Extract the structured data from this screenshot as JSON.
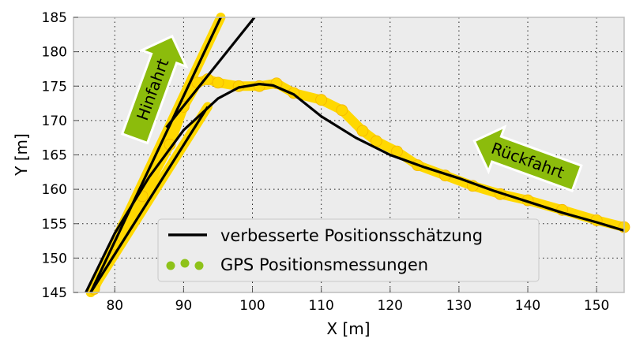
{
  "chart_data": {
    "type": "scatter",
    "title": "",
    "xlabel": "X [m]",
    "ylabel": "Y [m]",
    "xlim": [
      74,
      154
    ],
    "ylim": [
      145,
      185
    ],
    "xticks": [
      80,
      90,
      100,
      110,
      120,
      130,
      140,
      150
    ],
    "yticks": [
      145,
      150,
      155,
      160,
      165,
      170,
      175,
      180,
      185
    ],
    "grid": true,
    "legend_placement": "lower-center",
    "colors": {
      "plot_background": "#ececec",
      "line": "#000000",
      "gps_marker": "#ffd700",
      "legend_marker": "#8ec21a",
      "arrow_fill": "#8cbc0c",
      "arrow_stroke": "#ffffff"
    },
    "series": [
      {
        "name": "verbesserte Positionsschätzung",
        "kind": "line",
        "x": [
          75.8,
          80,
          85,
          90,
          95,
          98,
          101,
          103,
          106,
          110,
          115,
          120,
          125,
          130,
          135,
          140,
          145,
          150,
          154
        ],
        "y": [
          145,
          153.6,
          161.8,
          168.6,
          173.2,
          174.8,
          175.3,
          175.1,
          173.8,
          170.6,
          167.5,
          165,
          163.2,
          161.6,
          159.8,
          158.2,
          156.6,
          155.2,
          154
        ],
        "segments": [
          {
            "x": [
              76.5,
              95.4
            ],
            "y": [
              145,
              185
            ]
          },
          {
            "x": [
              76.5,
              93.5
            ],
            "y": [
              145,
              172
            ]
          },
          {
            "x": [
              87.5,
              100.3
            ],
            "y": [
              169,
              185
            ]
          }
        ]
      },
      {
        "name": "GPS Positionsmessungen",
        "kind": "scatter",
        "x": [
          77,
          80,
          84,
          88,
          90,
          92,
          93.5,
          95,
          98,
          101,
          103.5,
          106,
          110,
          113,
          116,
          118,
          121,
          124,
          128,
          132,
          136,
          140,
          145,
          150,
          154
        ],
        "y": [
          145.5,
          152,
          159,
          166.5,
          172,
          175.5,
          176,
          175.5,
          175,
          175,
          175.4,
          174,
          173,
          171.5,
          168.5,
          167,
          165.5,
          163.5,
          162,
          160.5,
          159.3,
          158.4,
          157,
          155.5,
          154.5
        ],
        "trace": [
          {
            "x": [
              76.5,
              93.5
            ],
            "y": [
              145,
              172
            ]
          },
          {
            "x": [
              76.5,
              95.4
            ],
            "y": [
              145,
              185
            ]
          }
        ]
      }
    ],
    "annotations": [
      {
        "text": "Hinfahrt",
        "x": 85.5,
        "y": 174.5,
        "direction": "up"
      },
      {
        "text": "Rückfahrt",
        "x": 140,
        "y": 164.2,
        "direction": "left"
      }
    ]
  }
}
